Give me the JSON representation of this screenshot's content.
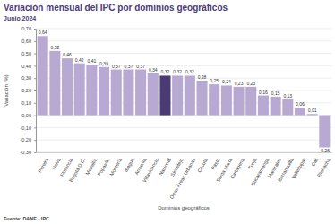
{
  "chart_data": {
    "type": "bar",
    "title": "Variación mensual del IPC por dominios geográficos",
    "subtitle": "Junio 2024",
    "x_label": "Dominios geográficos",
    "y_label": "Variación (%)",
    "source": "Fuente: DANE - IPC",
    "categories": [
      "Pereira",
      "Neiva",
      "Florencia",
      "Bogotá D.C.",
      "Medellín",
      "Popayán",
      "Montería",
      "Ibagué",
      "Armenia",
      "Villavicencio",
      "Nacional",
      "Sincelejo",
      "Otras Áreas Urbanas",
      "Cúcuta",
      "Pasto",
      "Santa Marta",
      "Cartagena",
      "Tunja",
      "Bucaramanga",
      "Manizales",
      "Barranquilla",
      "Valledupar",
      "Cali",
      "Riohacha"
    ],
    "values": [
      0.64,
      0.52,
      0.46,
      0.42,
      0.41,
      0.39,
      0.37,
      0.37,
      0.37,
      0.34,
      0.32,
      0.32,
      0.32,
      0.28,
      0.25,
      0.24,
      0.23,
      0.23,
      0.16,
      0.15,
      0.13,
      0.06,
      0.01,
      -0.26
    ],
    "value_labels": [
      "0,64",
      "0,52",
      "0,46",
      "0,42",
      "0,41",
      "0,39",
      "0,37",
      "0,37",
      "0,37",
      "0,34",
      "0,32",
      "0,32",
      "0,32",
      "0,28",
      "0,25",
      "0,24",
      "0,23",
      "0,23",
      "0,16",
      "0,15",
      "0,13",
      "0,06",
      "0,01",
      "-0,26"
    ],
    "colors": [
      "#b8a9d3",
      "#b8a9d3",
      "#b8a9d3",
      "#b8a9d3",
      "#b8a9d3",
      "#b8a9d3",
      "#b8a9d3",
      "#b8a9d3",
      "#b8a9d3",
      "#b8a9d3",
      "#4b3b74",
      "#b8a9d3",
      "#b8a9d3",
      "#b8a9d3",
      "#b8a9d3",
      "#b8a9d3",
      "#b8a9d3",
      "#b8a9d3",
      "#b8a9d3",
      "#b8a9d3",
      "#b8a9d3",
      "#b8a9d3",
      "#b8a9d3",
      "#b8a9d3"
    ],
    "ylim": [
      -0.3,
      0.7
    ],
    "yticks": [
      {
        "value": -0.3,
        "label": "-0,30"
      },
      {
        "value": -0.2,
        "label": "-0,20"
      },
      {
        "value": -0.1,
        "label": "-0,10"
      },
      {
        "value": 0,
        "label": "0,00"
      },
      {
        "value": 0.1,
        "label": "0,10"
      },
      {
        "value": 0.2,
        "label": "0,20"
      },
      {
        "value": 0.3,
        "label": "0,30"
      },
      {
        "value": 0.4,
        "label": "0,40"
      },
      {
        "value": 0.5,
        "label": "0,50"
      },
      {
        "value": 0.6,
        "label": "0,60"
      },
      {
        "value": 0.7,
        "label": "0,70"
      }
    ],
    "grid": true,
    "data_labels": true
  }
}
